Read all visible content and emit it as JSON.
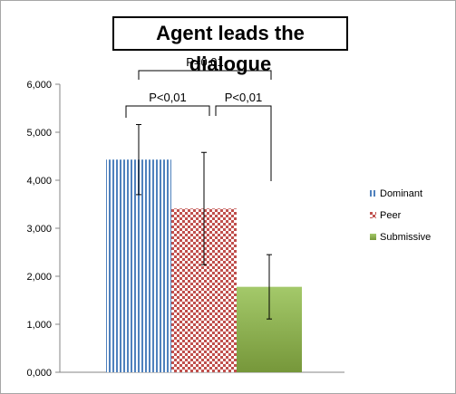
{
  "chart_data": {
    "type": "bar",
    "title": "Agent leads the dialogue",
    "xlabel": "",
    "ylabel": "",
    "ylim": [
      0,
      6
    ],
    "yticks": [
      "0,000",
      "1,000",
      "2,000",
      "3,000",
      "4,000",
      "5,000",
      "6,000"
    ],
    "legend_position": "right",
    "series": [
      {
        "name": "Dominant",
        "value": 4.43,
        "error": 0.73,
        "pattern": "vertical-stripes",
        "color": "#4f81bd"
      },
      {
        "name": "Peer",
        "value": 3.41,
        "error": 1.17,
        "pattern": "checker",
        "color": "#c0504d"
      },
      {
        "name": "Submissive",
        "value": 1.78,
        "error": 0.67,
        "pattern": "gradient",
        "color": "#9bbb59"
      }
    ],
    "significance": [
      {
        "label": "P=0,01",
        "from": 0,
        "to": 2
      },
      {
        "label": "P<0,01",
        "from": 0,
        "to": 1
      },
      {
        "label": "P<0,01",
        "from": 1,
        "to": 2
      }
    ]
  }
}
